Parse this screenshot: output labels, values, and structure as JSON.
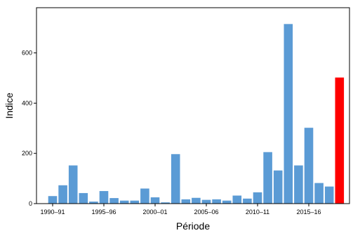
{
  "chart_data": {
    "type": "bar",
    "xlabel": "Période",
    "ylabel": "Indice",
    "ylim": [
      0,
      780
    ],
    "yticks": [
      0,
      200,
      400,
      600
    ],
    "ytick_labels": [
      "0",
      "200",
      "400",
      "600"
    ],
    "categories": [
      "1990-91",
      "1991-92",
      "1992-93",
      "1993-94",
      "1994-95",
      "1995-96",
      "1996-97",
      "1997-98",
      "1998-99",
      "1999-00",
      "2000-01",
      "2001-02",
      "2002-03",
      "2003-04",
      "2004-05",
      "2005-06",
      "2006-07",
      "2007-08",
      "2008-09",
      "2009-10",
      "2010-11",
      "2011-12",
      "2012-13",
      "2013-14",
      "2014-15",
      "2015-16",
      "2016-17",
      "2017-18",
      "2018-19"
    ],
    "values": [
      30,
      73,
      152,
      42,
      8,
      50,
      22,
      12,
      12,
      60,
      25,
      5,
      197,
      17,
      23,
      15,
      17,
      12,
      32,
      20,
      45,
      205,
      132,
      715,
      152,
      302,
      82,
      68,
      502
    ],
    "xtick_labels": [
      "1990–91",
      "1995–96",
      "2000–01",
      "2005–06",
      "2010–11",
      "2015–16"
    ],
    "xtick_indices": [
      0,
      5,
      10,
      15,
      20,
      25
    ],
    "bar_color": "#5b9bd5",
    "highlight_color": "#ff0000",
    "highlight_index": 28,
    "grid": false
  }
}
